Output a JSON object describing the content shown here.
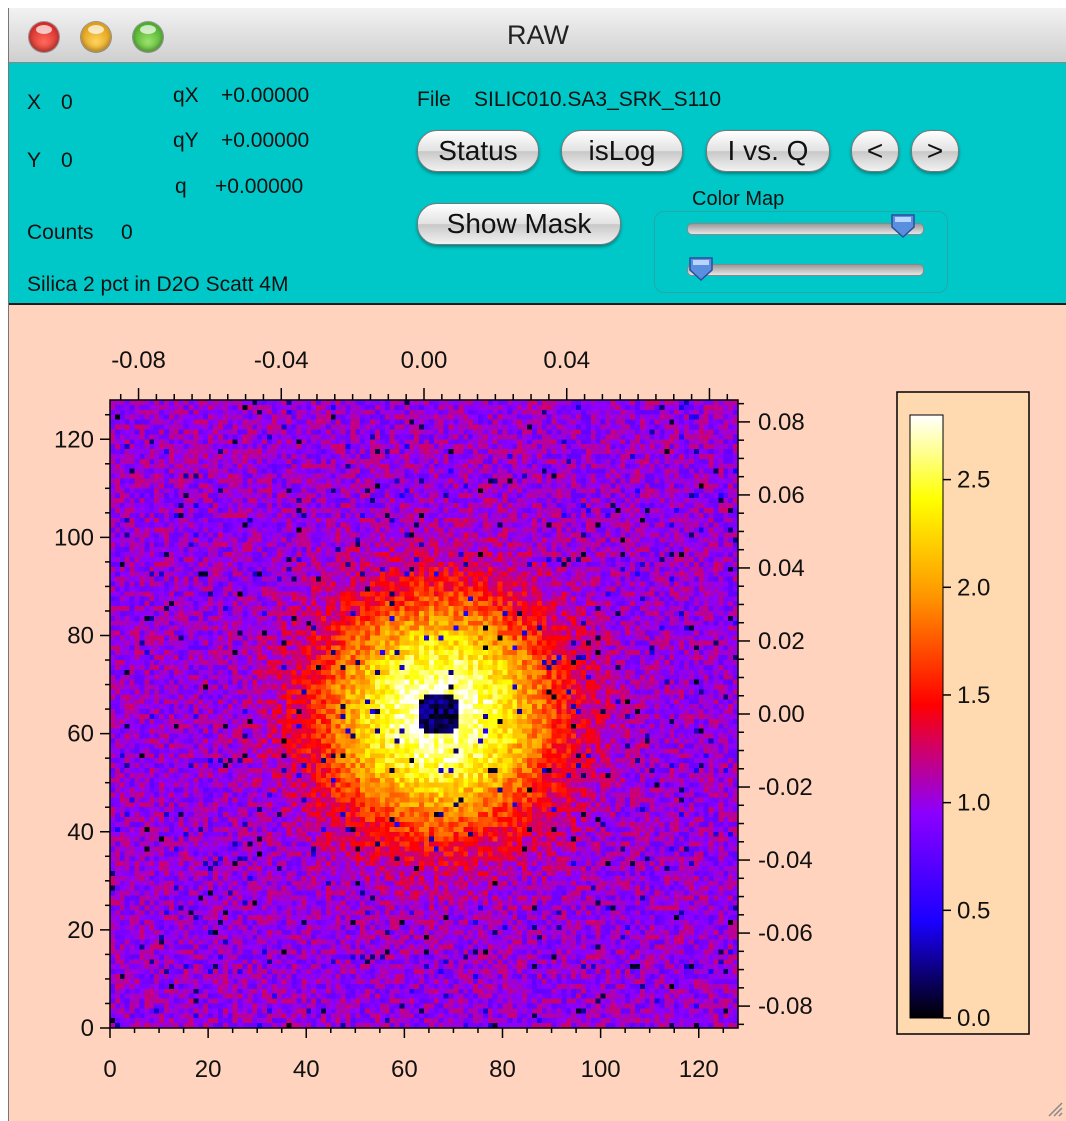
{
  "window": {
    "title": "RAW"
  },
  "info": {
    "x_label": "X",
    "x_value": "0",
    "y_label": "Y",
    "y_value": "0",
    "qx_label": "qX",
    "qx_value": "+0.00000",
    "qy_label": "qY",
    "qy_value": "+0.00000",
    "q_label": "q",
    "q_value": "+0.00000",
    "counts_label": "Counts",
    "counts_value": "0",
    "sample_name": "Silica 2 pct in D2O Scatt 4M",
    "file_label": "File",
    "file_name": "SILIC010.SA3_SRK_S110"
  },
  "buttons": {
    "status": "Status",
    "islog": "isLog",
    "ivsq": "I vs. Q",
    "prev": "<",
    "next": ">",
    "show_mask": "Show Mask"
  },
  "colormap": {
    "label": "Color Map",
    "upper_slider_fraction": 0.92,
    "lower_slider_fraction": 0.06
  },
  "chart_data": {
    "type": "heatmap",
    "title": "",
    "description_colors": [
      "#000000",
      "#1a00ff",
      "#8c00ff",
      "#ff0000",
      "#ff9900",
      "#ffff00",
      "#ffffff"
    ],
    "x_pixels": {
      "range": [
        0,
        128
      ],
      "ticks": [
        "0",
        "20",
        "40",
        "60",
        "80",
        "100",
        "120"
      ]
    },
    "y_pixels": {
      "range": [
        0,
        128
      ],
      "ticks": [
        "0",
        "20",
        "40",
        "60",
        "80",
        "100",
        "120"
      ]
    },
    "qx": {
      "range": [
        -0.088,
        0.088
      ],
      "ticks": [
        "-0.08",
        "-0.04",
        "0.00",
        "0.04"
      ]
    },
    "qy": {
      "range": [
        -0.086,
        0.086
      ],
      "ticks": [
        "0.08",
        "0.06",
        "0.04",
        "0.02",
        "0.00",
        "-0.02",
        "-0.04",
        "-0.06",
        "-0.08"
      ]
    },
    "beam_center": {
      "x": 67,
      "y": 64
    },
    "colorbar": {
      "range": [
        0.0,
        2.8
      ],
      "ticks": [
        "2.5",
        "2.0",
        "1.5",
        "1.0",
        "0.5",
        "0.0"
      ]
    }
  }
}
